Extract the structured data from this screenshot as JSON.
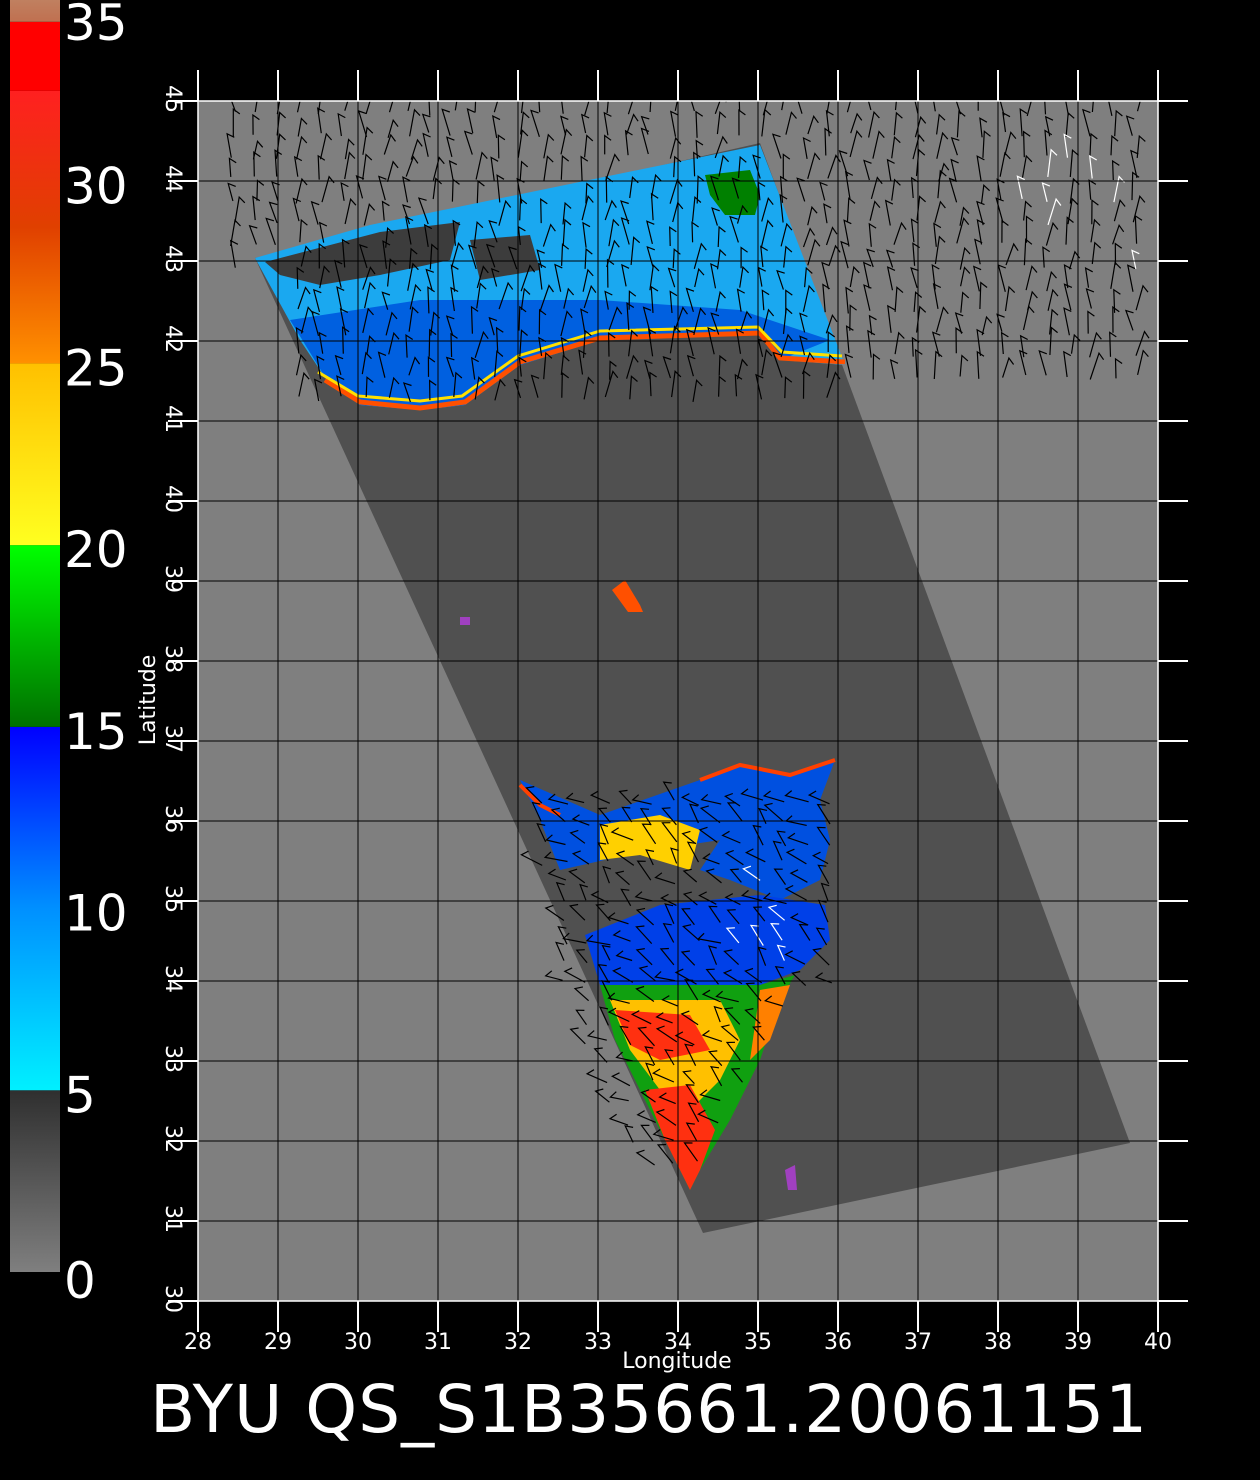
{
  "colorbar": {
    "ticks": [
      "0",
      "5",
      "10",
      "15",
      "20",
      "25",
      "30",
      "35"
    ],
    "range": [
      0,
      35
    ],
    "segments": [
      {
        "from": 0,
        "to": 5,
        "colors": [
          "#7f7f7f",
          "#2f2f2f"
        ]
      },
      {
        "from": 5,
        "to": 15,
        "colors": [
          "#00f0ff",
          "#0090ff",
          "#0000ff"
        ]
      },
      {
        "from": 15,
        "to": 20,
        "colors": [
          "#007000",
          "#00ff00"
        ]
      },
      {
        "from": 20,
        "to": 25,
        "colors": [
          "#ffff20",
          "#ffc000"
        ]
      },
      {
        "from": 25,
        "to": 32.5,
        "colors": [
          "#ff9000",
          "#e04000",
          "#ff2020"
        ]
      },
      {
        "from": 32.5,
        "to": 34.4,
        "colors": [
          "#ff0000",
          "#ff0000"
        ]
      },
      {
        "from": 34.4,
        "to": 35,
        "colors": [
          "#c07050",
          "#c08060"
        ]
      }
    ]
  },
  "map": {
    "lon_range": [
      28,
      40
    ],
    "lat_range": [
      30,
      45
    ],
    "lon_ticks": [
      "28",
      "29",
      "30",
      "31",
      "32",
      "33",
      "34",
      "35",
      "36",
      "37",
      "38",
      "39",
      "40"
    ],
    "lat_ticks": [
      "30",
      "31",
      "32",
      "33",
      "34",
      "35",
      "36",
      "37",
      "38",
      "39",
      "40",
      "41",
      "42",
      "43",
      "44",
      "45"
    ],
    "xlabel": "Longitude",
    "ylabel": "Latitude",
    "background_color": "#7f7f7f",
    "swath_color": "#505050",
    "grid_color": "#000000"
  },
  "caption": "BYU  QS_S1B35661.20061151"
}
